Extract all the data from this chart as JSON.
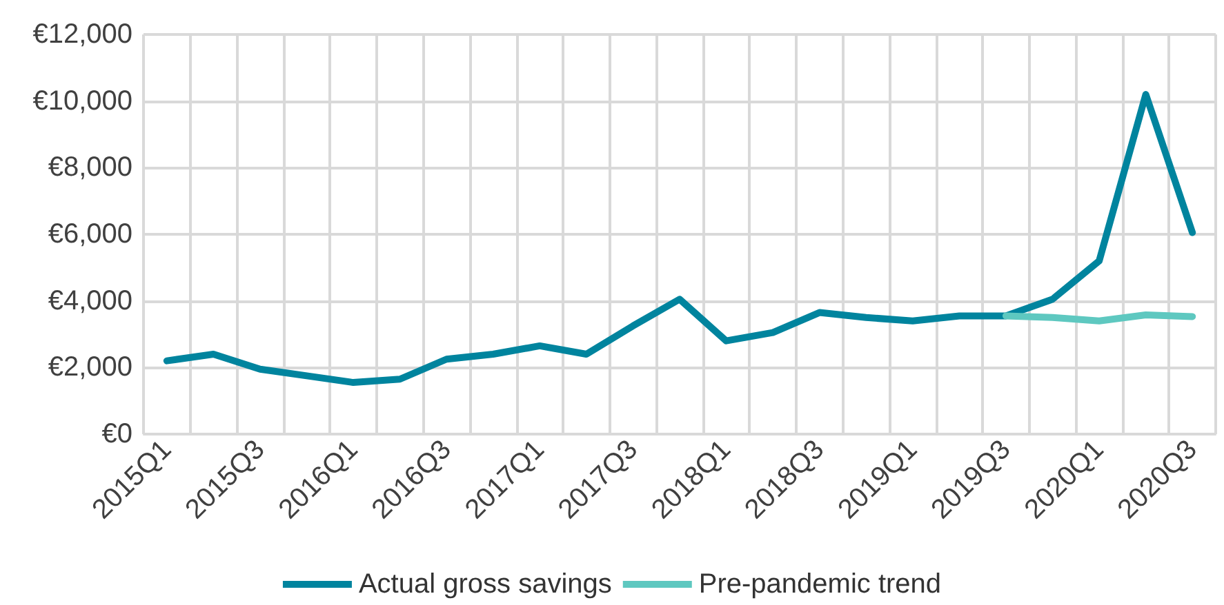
{
  "chart_data": {
    "type": "line",
    "categories": [
      "2015Q1",
      null,
      "2015Q3",
      null,
      "2016Q1",
      null,
      "2016Q3",
      null,
      "2017Q1",
      null,
      "2017Q3",
      null,
      "2018Q1",
      null,
      "2018Q3",
      null,
      "2019Q1",
      null,
      "2019Q3",
      null,
      "2020Q1",
      null,
      "2020Q3"
    ],
    "series": [
      {
        "name": "Actual gross savings",
        "color": "#00849e",
        "values": [
          2200,
          2400,
          1950,
          1750,
          1550,
          1650,
          2250,
          2400,
          2650,
          2400,
          3250,
          4050,
          2800,
          3050,
          3650,
          3500,
          3400,
          3550,
          3550,
          4050,
          5200,
          10200,
          6050
        ]
      },
      {
        "name": "Pre-pandemic trend",
        "color": "#5ec8c0",
        "values": [
          null,
          null,
          null,
          null,
          null,
          null,
          null,
          null,
          null,
          null,
          null,
          null,
          null,
          null,
          null,
          null,
          null,
          null,
          3550,
          3500,
          3400,
          3580,
          3530
        ]
      }
    ],
    "ylim": [
      0,
      12000
    ],
    "yticks": [
      {
        "value": 0,
        "label": "€0"
      },
      {
        "value": 2000,
        "label": "€2,000"
      },
      {
        "value": 4000,
        "label": "€4,000"
      },
      {
        "value": 6000,
        "label": "€6,000"
      },
      {
        "value": 8000,
        "label": "€8,000"
      },
      {
        "value": 10000,
        "label": "€10,000"
      },
      {
        "value": 12000,
        "label": "€12,000"
      }
    ],
    "grid": true,
    "legend": "bottom",
    "marker": "none",
    "line_style": "solid"
  }
}
